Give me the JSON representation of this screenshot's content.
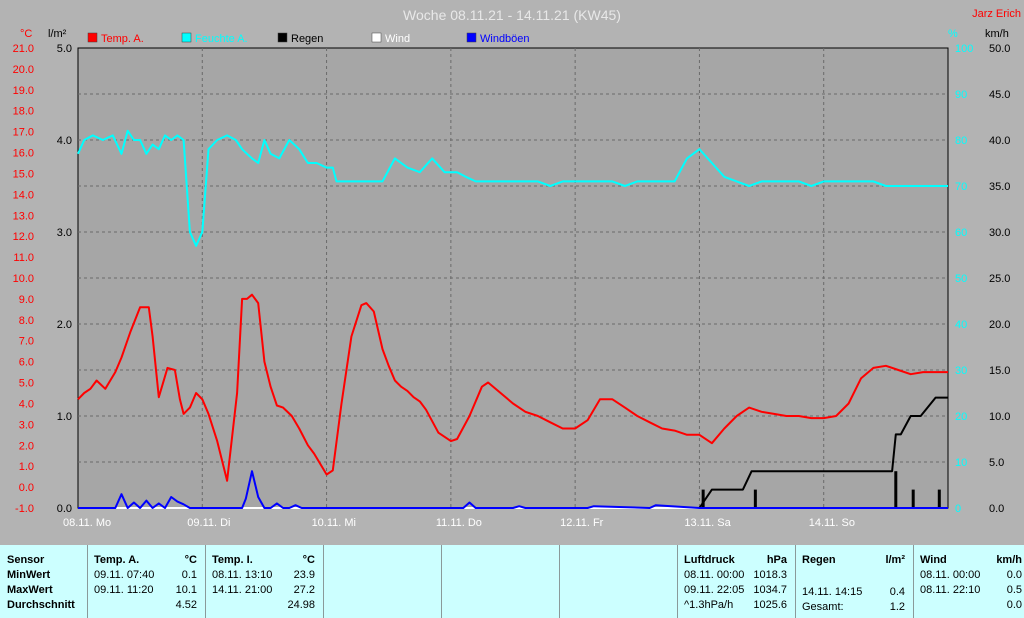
{
  "chart_data": {
    "type": "line",
    "title": "Woche 08.11.21 - 14.11.21 (KW45)",
    "author": "Jarz Erich",
    "legend": [
      "Temp. A.",
      "Feuchte A.",
      "Regen",
      "Wind",
      "Windböen"
    ],
    "axis_units": {
      "temp": "°C",
      "rain": "l/m²",
      "humidity": "%",
      "wind": "km/h"
    },
    "axes": {
      "temp": {
        "range": [
          -1.0,
          21.0
        ],
        "ticks": [
          "-1.0",
          "0.0",
          "1.0",
          "2.0",
          "3.0",
          "4.0",
          "5.0",
          "6.0",
          "7.0",
          "8.0",
          "9.0",
          "10.0",
          "11.0",
          "12.0",
          "13.0",
          "14.0",
          "15.0",
          "16.0",
          "17.0",
          "18.0",
          "19.0",
          "20.0",
          "21.0"
        ]
      },
      "rain": {
        "range": [
          0.0,
          5.0
        ],
        "ticks": [
          "0.0",
          "1.0",
          "2.0",
          "3.0",
          "4.0",
          "5.0"
        ]
      },
      "humidity": {
        "range": [
          0,
          100
        ],
        "ticks": [
          "0",
          "10",
          "20",
          "30",
          "40",
          "50",
          "60",
          "70",
          "80",
          "90",
          "100"
        ]
      },
      "wind": {
        "range": [
          0.0,
          50.0
        ],
        "ticks": [
          "0.0",
          "5.0",
          "10.0",
          "15.0",
          "20.0",
          "25.0",
          "30.0",
          "35.0",
          "40.0",
          "45.0",
          "50.0"
        ]
      }
    },
    "x_ticks": [
      "08.11. Mo",
      "09.11. Di",
      "10.11. Mi",
      "11.11. Do",
      "12.11. Fr",
      "13.11. Sa",
      "14.11. So"
    ],
    "x_unit": "day index from 08.11. 00:00",
    "grid": true,
    "series": [
      {
        "name": "Temp. A.",
        "axis": "temp",
        "color": "#ff0000",
        "x": [
          0,
          0.05,
          0.1,
          0.15,
          0.22,
          0.3,
          0.35,
          0.42,
          0.5,
          0.57,
          0.6,
          0.65,
          0.72,
          0.78,
          0.82,
          0.85,
          0.9,
          0.95,
          1.0,
          1.05,
          1.12,
          1.2,
          1.28,
          1.32,
          1.36,
          1.4,
          1.45,
          1.5,
          1.55,
          1.6,
          1.65,
          1.72,
          1.78,
          1.85,
          1.9,
          1.95,
          2.0,
          2.05,
          2.12,
          2.2,
          2.28,
          2.32,
          2.38,
          2.45,
          2.5,
          2.55,
          2.6,
          2.65,
          2.7,
          2.75,
          2.8,
          2.9,
          3.0,
          3.05,
          3.15,
          3.25,
          3.3,
          3.4,
          3.5,
          3.6,
          3.7,
          3.8,
          3.9,
          4.0,
          4.1,
          4.2,
          4.3,
          4.4,
          4.5,
          4.6,
          4.7,
          4.8,
          4.9,
          5.0,
          5.1,
          5.2,
          5.3,
          5.4,
          5.5,
          5.6,
          5.7,
          5.8,
          5.9,
          6.0,
          6.1,
          6.2,
          6.3,
          6.4,
          6.5,
          6.6,
          6.7,
          6.8,
          6.9,
          7.0
        ],
        "y": [
          4.2,
          4.5,
          4.7,
          5.1,
          4.7,
          5.5,
          6.2,
          7.4,
          8.6,
          8.6,
          7.2,
          4.3,
          5.7,
          5.6,
          4.2,
          3.5,
          3.8,
          4.5,
          4.2,
          3.5,
          2.2,
          0.3,
          4.5,
          9.0,
          9.0,
          9.2,
          8.8,
          6.0,
          4.8,
          3.9,
          3.8,
          3.4,
          2.8,
          2.0,
          1.6,
          1.1,
          0.6,
          0.8,
          4.0,
          7.2,
          8.7,
          8.8,
          8.4,
          6.6,
          5.8,
          5.1,
          4.8,
          4.6,
          4.3,
          4.1,
          3.7,
          2.6,
          2.2,
          2.3,
          3.4,
          4.8,
          5.0,
          4.5,
          4.0,
          3.6,
          3.4,
          3.1,
          2.8,
          2.8,
          3.2,
          4.2,
          4.2,
          3.8,
          3.4,
          3.1,
          2.8,
          2.7,
          2.5,
          2.5,
          2.1,
          2.8,
          3.4,
          3.8,
          3.6,
          3.5,
          3.4,
          3.4,
          3.3,
          3.3,
          3.4,
          4.0,
          5.2,
          5.7,
          5.8,
          5.6,
          5.4,
          5.5,
          5.5,
          5.5
        ]
      },
      {
        "name": "Feuchte A.",
        "axis": "humidity",
        "color": "#00ffff",
        "x": [
          0,
          0.05,
          0.12,
          0.2,
          0.28,
          0.35,
          0.4,
          0.45,
          0.5,
          0.55,
          0.6,
          0.65,
          0.7,
          0.75,
          0.8,
          0.85,
          0.9,
          0.95,
          1.0,
          1.05,
          1.12,
          1.2,
          1.27,
          1.32,
          1.36,
          1.4,
          1.45,
          1.5,
          1.55,
          1.62,
          1.7,
          1.78,
          1.85,
          1.92,
          2.0,
          2.05,
          2.08,
          2.12,
          2.18,
          2.25,
          2.32,
          2.38,
          2.45,
          2.55,
          2.65,
          2.75,
          2.85,
          2.95,
          3.05,
          3.12,
          3.2,
          3.3,
          3.4,
          3.5,
          3.6,
          3.7,
          3.8,
          3.9,
          4.0,
          4.1,
          4.2,
          4.3,
          4.4,
          4.5,
          4.6,
          4.7,
          4.8,
          4.9,
          5.0,
          5.1,
          5.2,
          5.3,
          5.4,
          5.5,
          5.6,
          5.7,
          5.8,
          5.9,
          6.0,
          6.1,
          6.2,
          6.3,
          6.4,
          6.5,
          6.6,
          6.7,
          6.8,
          6.9,
          7.0
        ],
        "y": [
          77,
          80,
          81,
          80,
          81,
          77,
          82,
          80,
          80,
          77,
          79,
          78,
          81,
          80,
          81,
          80,
          60,
          57,
          60,
          78,
          80,
          81,
          80,
          78,
          77,
          76,
          75,
          80,
          77,
          76,
          80,
          78,
          75,
          75,
          74,
          74,
          71,
          71,
          71,
          71,
          71,
          71,
          71,
          76,
          74,
          73,
          76,
          73,
          73,
          72,
          71,
          71,
          71,
          71,
          71,
          71,
          70,
          71,
          71,
          71,
          71,
          71,
          70,
          71,
          71,
          71,
          71,
          76,
          78,
          75,
          72,
          71,
          70,
          71,
          71,
          71,
          71,
          70,
          71,
          71,
          71,
          71,
          71,
          70,
          70,
          70,
          70,
          70,
          70
        ]
      },
      {
        "name": "Regen",
        "axis": "rain",
        "color": "#000000",
        "style": "step",
        "x": [
          0,
          5.0,
          5.1,
          5.35,
          5.42,
          6.55,
          6.58,
          6.62,
          6.7,
          6.78,
          6.9,
          7.0
        ],
        "y": [
          0,
          0,
          0.2,
          0.2,
          0.4,
          0.4,
          0.8,
          0.8,
          1.0,
          1.0,
          1.2,
          1.2
        ],
        "daily_bars": [
          {
            "x": 5.03,
            "y": 0.2
          },
          {
            "x": 5.45,
            "y": 0.2
          },
          {
            "x": 6.58,
            "y": 0.4
          },
          {
            "x": 6.72,
            "y": 0.2
          },
          {
            "x": 6.93,
            "y": 0.2
          }
        ]
      },
      {
        "name": "Wind",
        "axis": "wind",
        "color": "#ffffff",
        "x": [
          0,
          7.0
        ],
        "y": [
          0,
          0
        ]
      },
      {
        "name": "Windböen",
        "axis": "wind",
        "color": "#0000ff",
        "x": [
          0,
          0.25,
          0.3,
          0.35,
          0.4,
          0.45,
          0.5,
          0.55,
          0.6,
          0.65,
          0.7,
          0.75,
          0.8,
          0.85,
          0.9,
          0.95,
          1.0,
          1.1,
          1.2,
          1.3,
          1.32,
          1.35,
          1.4,
          1.45,
          1.5,
          1.55,
          1.6,
          1.65,
          1.7,
          1.75,
          1.8,
          2.0,
          3.1,
          3.15,
          3.2,
          3.5,
          3.55,
          3.6,
          4.1,
          4.15,
          4.6,
          4.65,
          5.0,
          7.0
        ],
        "y": [
          0,
          0,
          0,
          1.5,
          0,
          0.6,
          0,
          0.8,
          0,
          0.5,
          0,
          1.2,
          0.7,
          0.4,
          0,
          0,
          0,
          0,
          0,
          0,
          0,
          1.0,
          4.0,
          1.2,
          0,
          0,
          0.5,
          0,
          0,
          0.3,
          0,
          0,
          0,
          0.6,
          0,
          0,
          0.2,
          0,
          0,
          0.2,
          0,
          0.3,
          0,
          0
        ]
      }
    ]
  },
  "table": {
    "sensor": {
      "header": "Sensor",
      "min": "MinWert",
      "max": "MaxWert",
      "avg": "Durchschnitt"
    },
    "temp_a": {
      "header": "Temp. A.",
      "unit": "°C",
      "min_time": "09.11.  07:40",
      "min_val": "0.1",
      "max_time": "09.11.  11:20",
      "max_val": "10.1",
      "avg": "4.52"
    },
    "temp_i": {
      "header": "Temp. I.",
      "unit": "°C",
      "min_time": "08.11.  13:10",
      "min_val": "23.9",
      "max_time": "14.11.  21:00",
      "max_val": "27.2",
      "avg": "24.98"
    },
    "pressure": {
      "header": "Luftdruck",
      "unit": "hPa",
      "min_time": "08.11.  00:00",
      "min_val": "1018.3",
      "max_time": "09.11.  22:05",
      "max_val": "1034.7",
      "avg_label": "^1.3hPa/h",
      "avg": "1025.6"
    },
    "rain": {
      "header": "Regen",
      "unit": "l/m²",
      "max_time": "14.11.  14:15",
      "max_val": "0.4",
      "total_label": "Gesamt:",
      "total": "1.2"
    },
    "wind": {
      "header": "Wind",
      "unit": "km/h",
      "min_time": "08.11.  00:00",
      "min_val": "0.0",
      "max_time": "08.11.  22:10",
      "max_val": "0.5",
      "avg": "0.0"
    }
  }
}
